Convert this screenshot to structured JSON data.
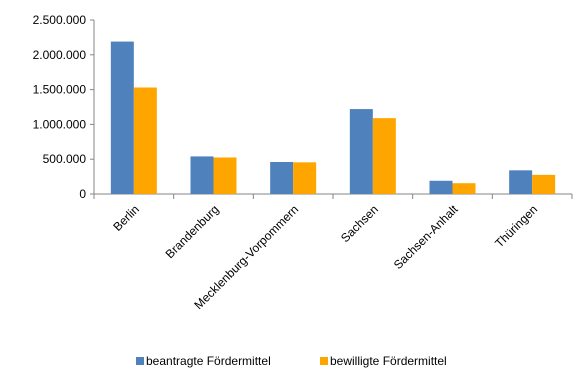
{
  "chart_data": {
    "type": "bar",
    "categories": [
      "Berlin",
      "Brandenburg",
      "Mecklenburg-Vorpommern",
      "Sachsen",
      "Sachsen-Anhalt",
      "Thüringen"
    ],
    "series": [
      {
        "name": "beantragte Fördermittel",
        "color": "#4F81BD",
        "values": [
          2190000,
          540000,
          460000,
          1220000,
          190000,
          340000
        ]
      },
      {
        "name": "bewilligte Fördermittel",
        "color": "#FFA500",
        "values": [
          1530000,
          525000,
          455000,
          1090000,
          155000,
          275000
        ]
      }
    ],
    "yticks": [
      "0",
      "500.000",
      "1.000.000",
      "1.500.000",
      "2.000.000",
      "2.500.000"
    ],
    "ylim": [
      0,
      2500000
    ],
    "legend": "bottom",
    "grid": false
  }
}
